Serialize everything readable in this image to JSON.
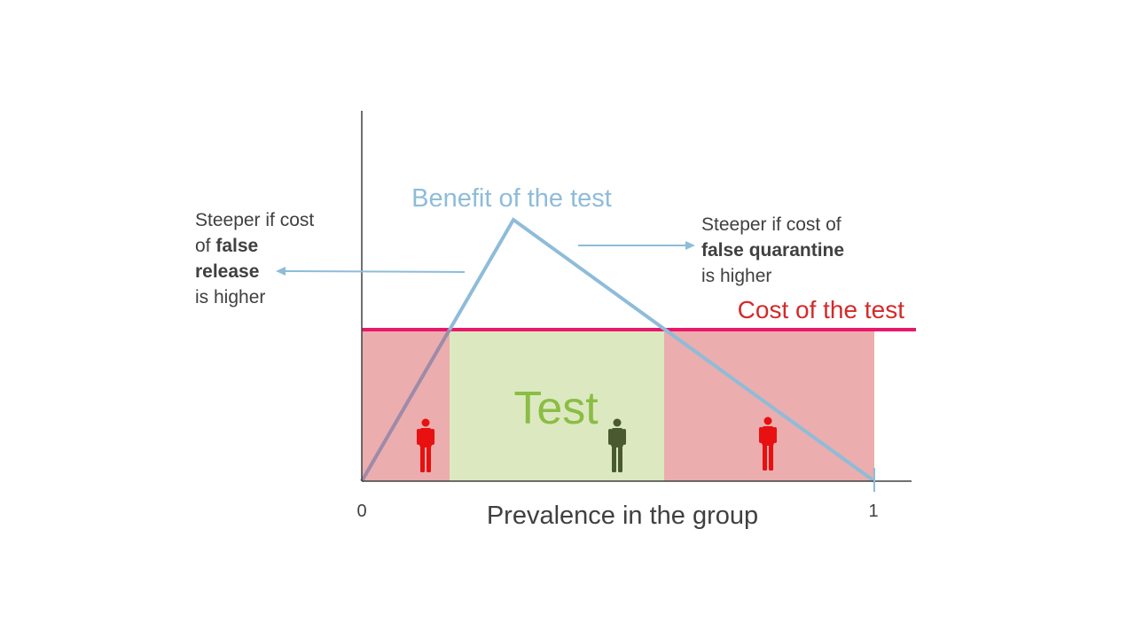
{
  "diagram": {
    "benefit_label": "Benefit of the test",
    "cost_label": "Cost of the test",
    "test_label": "Test",
    "x_axis_label": "Prevalence in the group",
    "x_tick_start": "0",
    "x_tick_end": "1",
    "left_note": {
      "line1": "Steeper if cost",
      "line2_prefix": "of ",
      "line2_bold": "false",
      "line3_bold": "release",
      "line4": "is higher"
    },
    "right_note": {
      "line1": "Steeper if cost of",
      "line2_bold": "false quarantine",
      "line3": "is higher"
    },
    "colors": {
      "benefit_line": "#8ebcd9",
      "cost_line": "#e8196b",
      "cost_label": "#d42a2a",
      "no_test_region": "#ebadad",
      "test_region": "#dce9c0",
      "test_label": "#8bbd45",
      "axis": "#404040",
      "person_red": "#e81010",
      "person_green": "#4a5a30"
    }
  }
}
